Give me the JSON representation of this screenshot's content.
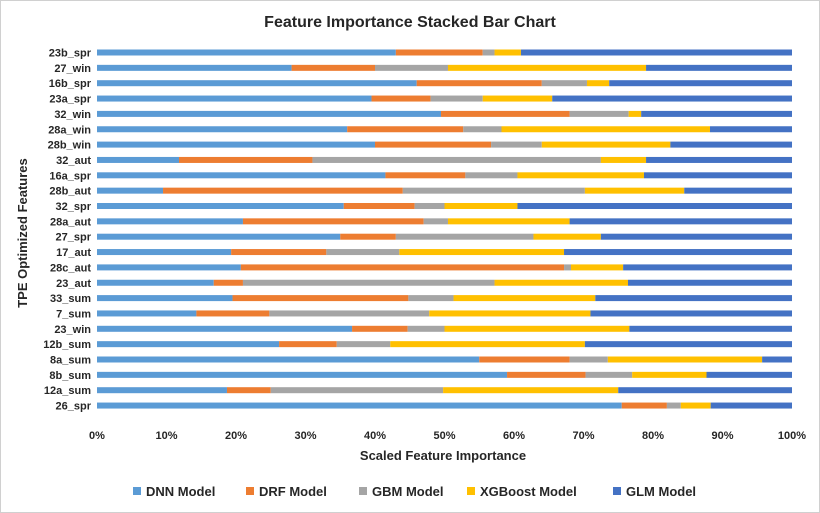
{
  "chart_data": {
    "type": "bar",
    "orientation": "horizontal",
    "stacked": "percent",
    "title": "Feature Importance Stacked Bar Chart",
    "xlabel": "Scaled Feature Importance",
    "ylabel": "TPE Optimized Features",
    "xlim": [
      0,
      100
    ],
    "x_ticks": [
      "0%",
      "10%",
      "20%",
      "30%",
      "40%",
      "50%",
      "60%",
      "70%",
      "80%",
      "90%",
      "100%"
    ],
    "grid": false,
    "legend_position": "bottom",
    "categories": [
      "23b_spr",
      "27_win",
      "16b_spr",
      "23a_spr",
      "32_win",
      "28a_win",
      "28b_win",
      "32_aut",
      "16a_spr",
      "28b_aut",
      "32_spr",
      "28a_aut",
      "27_spr",
      "17_aut",
      "28c_aut",
      "23_aut",
      "33_sum",
      "7_sum",
      "23_win",
      "12b_sum",
      "8a_sum",
      "8b_sum",
      "12a_sum",
      "26_spr"
    ],
    "series": [
      {
        "name": "DNN Model",
        "color": "#5b9bd5",
        "values": [
          43,
          28,
          46,
          39.5,
          49.5,
          36,
          40,
          11.8,
          41.5,
          9.5,
          35.5,
          21,
          35,
          19.3,
          20.7,
          16.8,
          19.5,
          14.3,
          36.7,
          26.2,
          55,
          59,
          18.7,
          75.5
        ]
      },
      {
        "name": "DRF Model",
        "color": "#ed7d31",
        "values": [
          12.5,
          12,
          18,
          8.5,
          18.5,
          16.7,
          16.7,
          19.2,
          11.5,
          34.5,
          10.2,
          26,
          8,
          13.7,
          46.5,
          4.2,
          25.3,
          10.5,
          8,
          8.3,
          13,
          11.3,
          6.3,
          6.5
        ]
      },
      {
        "name": "GBM Model",
        "color": "#a5a5a5",
        "values": [
          1.7,
          10.5,
          6.5,
          7.5,
          8.5,
          5.5,
          7.3,
          41.5,
          7.5,
          26.2,
          4.3,
          3.5,
          19.8,
          10.5,
          1,
          36.2,
          6.5,
          23,
          5.3,
          7.7,
          5.5,
          6.7,
          24.8,
          2
        ]
      },
      {
        "name": "XGBoost Model",
        "color": "#ffc000",
        "values": [
          3.8,
          28.5,
          3.2,
          10,
          1.8,
          30,
          18.5,
          6.5,
          18.2,
          14.3,
          10.5,
          17.5,
          9.7,
          23.7,
          7.5,
          19.2,
          20.4,
          23.2,
          26.6,
          28,
          22.2,
          10.7,
          25.2,
          4.3
        ]
      },
      {
        "name": "GLM Model",
        "color": "#4472c4",
        "values": [
          39,
          21,
          26.3,
          34.5,
          21.7,
          11.8,
          17.5,
          21,
          21.3,
          15.5,
          39.5,
          32,
          27.5,
          32.8,
          24.3,
          23.6,
          28.3,
          29,
          23.4,
          29.8,
          4.3,
          12.3,
          25,
          11.7
        ]
      }
    ]
  }
}
